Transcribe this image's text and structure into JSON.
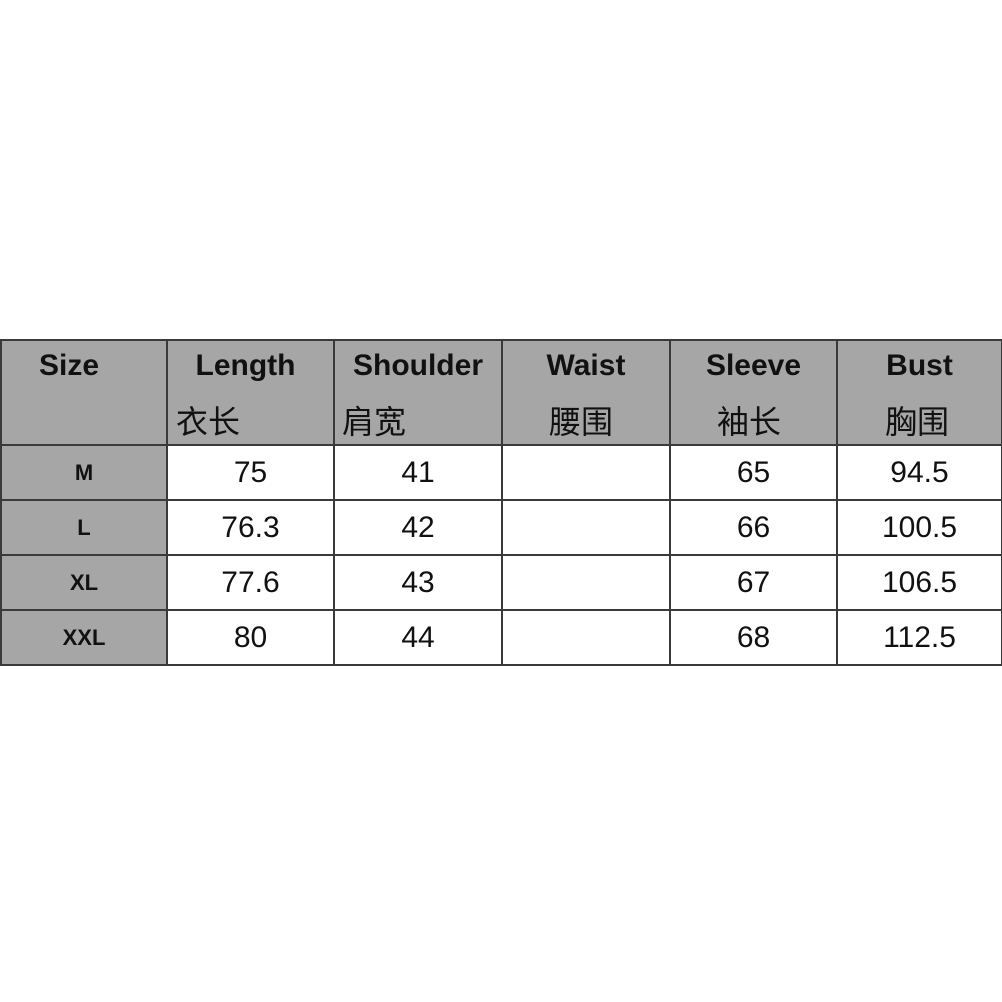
{
  "headers": [
    {
      "en": "Size",
      "zh": ""
    },
    {
      "en": "Length",
      "zh": "衣长"
    },
    {
      "en": "Shoulder",
      "zh": "肩宽"
    },
    {
      "en": "Waist",
      "zh": "腰围"
    },
    {
      "en": "Sleeve",
      "zh": "袖长"
    },
    {
      "en": "Bust",
      "zh": "胸围"
    }
  ],
  "rows": [
    [
      "M",
      "75",
      "41",
      "",
      "65",
      "94.5"
    ],
    [
      "L",
      "76.3",
      "42",
      "",
      "66",
      "100.5"
    ],
    [
      "XL",
      "77.6",
      "43",
      "",
      "67",
      "106.5"
    ],
    [
      "XXL",
      "80",
      "44",
      "",
      "68",
      "112.5"
    ]
  ],
  "colors": {
    "header_bg": "#a6a6a6",
    "border": "#3a3a3a"
  }
}
